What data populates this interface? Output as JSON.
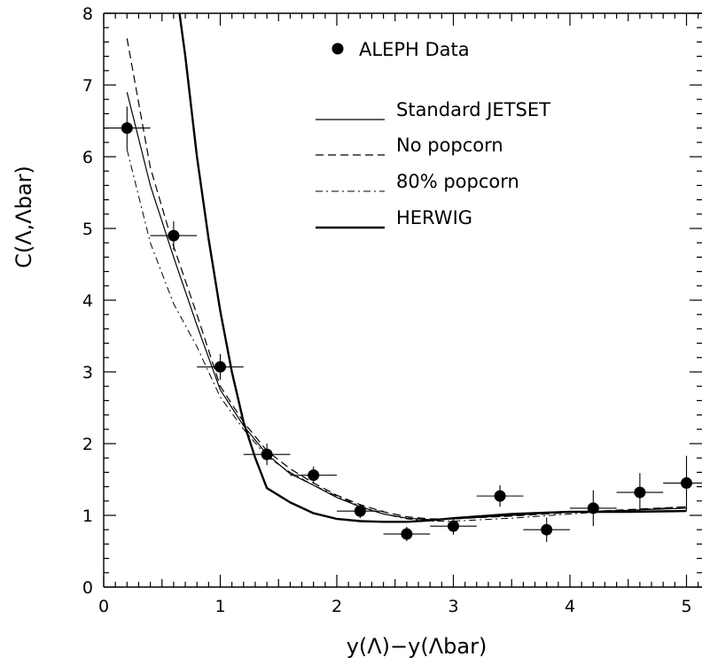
{
  "chart_data": {
    "type": "scatter",
    "xlabel": "y(Λ)−y(Λbar)",
    "ylabel": "C(Λ,Λbar)",
    "xlim": [
      0,
      5.2
    ],
    "ylim": [
      0,
      8
    ],
    "x_ticks": [
      "0",
      "1",
      "2",
      "3",
      "4",
      "5"
    ],
    "y_ticks": [
      "0",
      "1",
      "2",
      "3",
      "4",
      "5",
      "6",
      "7",
      "8"
    ],
    "grid": false,
    "legend_position": "top-right",
    "data_series": {
      "name": "ALEPH Data",
      "points": [
        {
          "x": 0.2,
          "y": 6.4,
          "xerr": 0.2,
          "yerr": 0.3
        },
        {
          "x": 0.6,
          "y": 4.9,
          "xerr": 0.2,
          "yerr": 0.2
        },
        {
          "x": 1.0,
          "y": 3.07,
          "xerr": 0.2,
          "yerr": 0.18
        },
        {
          "x": 1.4,
          "y": 1.85,
          "xerr": 0.2,
          "yerr": 0.15
        },
        {
          "x": 1.8,
          "y": 1.56,
          "xerr": 0.2,
          "yerr": 0.12
        },
        {
          "x": 2.2,
          "y": 1.06,
          "xerr": 0.2,
          "yerr": 0.1
        },
        {
          "x": 2.6,
          "y": 0.74,
          "xerr": 0.2,
          "yerr": 0.1
        },
        {
          "x": 3.0,
          "y": 0.85,
          "xerr": 0.2,
          "yerr": 0.12
        },
        {
          "x": 3.4,
          "y": 1.27,
          "xerr": 0.2,
          "yerr": 0.15
        },
        {
          "x": 3.8,
          "y": 0.8,
          "xerr": 0.2,
          "yerr": 0.17
        },
        {
          "x": 4.2,
          "y": 1.1,
          "xerr": 0.2,
          "yerr": 0.25
        },
        {
          "x": 4.6,
          "y": 1.32,
          "xerr": 0.2,
          "yerr": 0.27
        },
        {
          "x": 5.0,
          "y": 1.45,
          "xerr": 0.2,
          "yerr": 0.38
        }
      ]
    },
    "curves": [
      {
        "name": "Standard JETSET",
        "style": "solid",
        "x": [
          0.2,
          0.4,
          0.6,
          0.8,
          1.0,
          1.2,
          1.4,
          1.6,
          1.8,
          2.0,
          2.2,
          2.4,
          2.6,
          2.8,
          3.0,
          3.5,
          4.0,
          4.5,
          5.0
        ],
        "y": [
          6.9,
          5.6,
          4.6,
          3.65,
          2.75,
          2.25,
          1.85,
          1.58,
          1.42,
          1.25,
          1.12,
          1.02,
          0.96,
          0.94,
          0.95,
          1.0,
          1.05,
          1.07,
          1.1
        ]
      },
      {
        "name": "No popcorn",
        "style": "dashed",
        "x": [
          0.2,
          0.4,
          0.6,
          0.8,
          1.0,
          1.2,
          1.4,
          1.6,
          1.8,
          2.0,
          2.2,
          2.4,
          2.6,
          2.8,
          3.0,
          3.5,
          4.0,
          4.5,
          5.0
        ],
        "y": [
          7.65,
          5.85,
          4.75,
          3.8,
          2.8,
          2.3,
          1.9,
          1.65,
          1.45,
          1.28,
          1.15,
          1.05,
          0.98,
          0.95,
          0.95,
          0.99,
          1.04,
          1.08,
          1.12
        ]
      },
      {
        "name": "80% popcorn",
        "style": "dashdot",
        "x": [
          0.2,
          0.4,
          0.6,
          0.8,
          1.0,
          1.2,
          1.4,
          1.6,
          1.8,
          2.0,
          2.2,
          2.4,
          2.6,
          2.8,
          3.0,
          3.5,
          4.0,
          4.5,
          5.0
        ],
        "y": [
          6.1,
          4.8,
          3.95,
          3.35,
          2.65,
          2.2,
          1.82,
          1.6,
          1.42,
          1.27,
          1.13,
          1.02,
          0.95,
          0.92,
          0.92,
          0.96,
          1.02,
          1.07,
          1.12
        ]
      },
      {
        "name": "HERWIG",
        "style": "thick",
        "x": [
          0.65,
          0.7,
          0.8,
          0.9,
          1.0,
          1.1,
          1.2,
          1.3,
          1.4,
          1.6,
          1.8,
          2.0,
          2.2,
          2.4,
          2.6,
          2.8,
          3.0,
          3.5,
          4.0,
          4.5,
          5.0
        ],
        "y": [
          8.0,
          7.4,
          6.0,
          4.85,
          3.85,
          3.0,
          2.3,
          1.8,
          1.38,
          1.18,
          1.03,
          0.95,
          0.92,
          0.91,
          0.91,
          0.93,
          0.96,
          1.02,
          1.05,
          1.05,
          1.06
        ]
      }
    ]
  }
}
